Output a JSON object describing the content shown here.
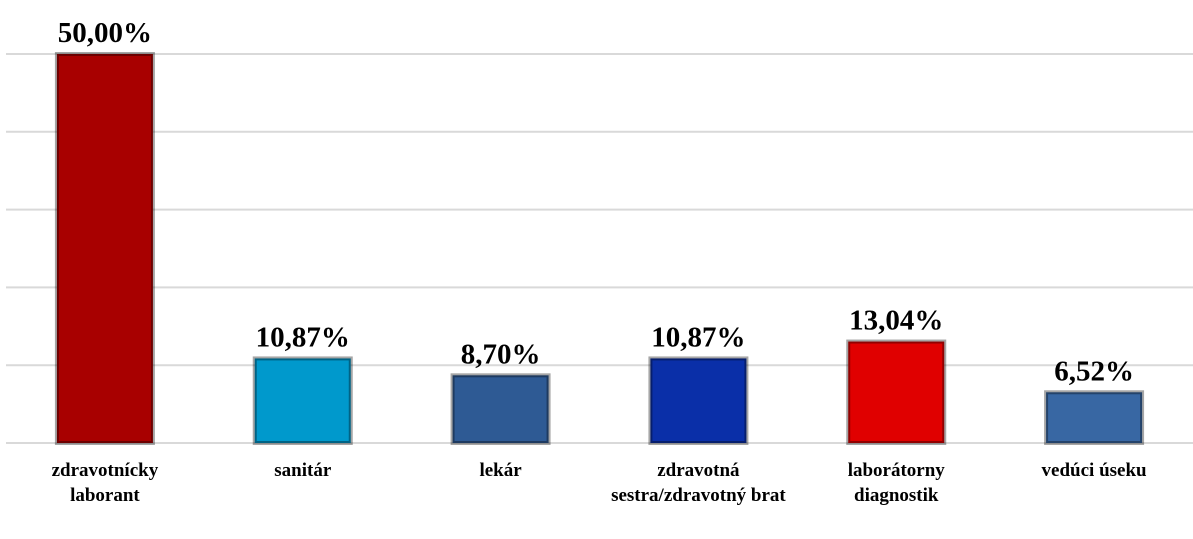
{
  "chart_data": {
    "type": "bar",
    "categories": [
      "zdravotnícky laborant",
      "sanitár",
      "lekár",
      "zdravotná sestra/zdravotný brat",
      "laborátorny diagnostik",
      "vedúci úseku"
    ],
    "values": [
      50,
      10.87,
      8.7,
      10.87,
      13.04,
      6.52
    ],
    "value_labels": [
      "50,00%",
      "10,87%",
      "8,70%",
      "10,87%",
      "13,04%",
      "6,52%"
    ],
    "colors": [
      "#a80000",
      "#0099cc",
      "#2e5a94",
      "#0a2fa8",
      "#e00000",
      "#3867a3"
    ],
    "ylim": [
      0,
      50
    ],
    "yticks": [
      0,
      10,
      20,
      30,
      40,
      50
    ],
    "grid": true
  }
}
